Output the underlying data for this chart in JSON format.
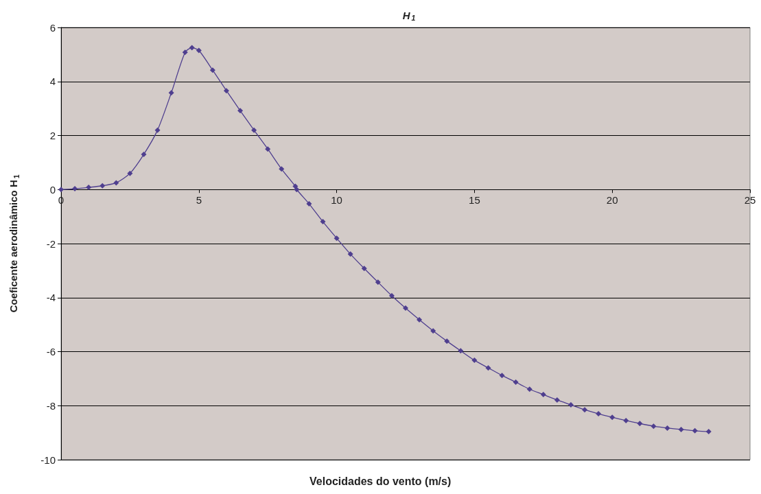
{
  "chart_data": {
    "type": "line",
    "title": "H$_{1}$",
    "xlabel": "Velocidades do vento (m/s)",
    "ylabel": "Coeficente aerodinâmico H$_{1}$",
    "x": [
      0,
      0.5,
      1,
      1.5,
      2,
      2.5,
      3,
      3.5,
      4,
      4.5,
      4.75,
      5,
      5.5,
      6,
      6.5,
      7,
      7.5,
      8,
      8.5,
      8.55,
      9,
      9.5,
      10,
      10.5,
      11,
      11.5,
      12,
      12.5,
      13,
      13.5,
      14,
      14.5,
      15,
      15.5,
      16,
      16.5,
      17,
      17.5,
      18,
      18.5,
      19,
      19.5,
      20,
      20.5,
      21,
      21.5,
      22,
      22.5,
      23,
      23.5
    ],
    "series": [
      {
        "color": "#4f3f8f",
        "values": [
          0,
          0.03,
          0.08,
          0.14,
          0.25,
          0.6,
          1.3,
          2.2,
          3.58,
          5.08,
          5.25,
          5.15,
          4.42,
          3.66,
          2.92,
          2.2,
          1.5,
          0.76,
          0.12,
          0.0,
          -0.53,
          -1.19,
          -1.8,
          -2.39,
          -2.92,
          -3.43,
          -3.93,
          -4.39,
          -4.82,
          -5.23,
          -5.61,
          -5.97,
          -6.32,
          -6.6,
          -6.88,
          -7.13,
          -7.39,
          -7.59,
          -7.79,
          -7.97,
          -8.15,
          -8.3,
          -8.43,
          -8.55,
          -8.66,
          -8.76,
          -8.83,
          -8.88,
          -8.93,
          -8.96
        ]
      }
    ],
    "xlim": [
      0,
      25
    ],
    "xticks": [
      0,
      5,
      10,
      15,
      20,
      25
    ],
    "ylim": [
      -10,
      6
    ],
    "yticks": [
      -10,
      -8,
      -6,
      -4,
      -2,
      0,
      2,
      4,
      6
    ],
    "grid": "y",
    "marker": "diamond",
    "line_style": "solid"
  }
}
